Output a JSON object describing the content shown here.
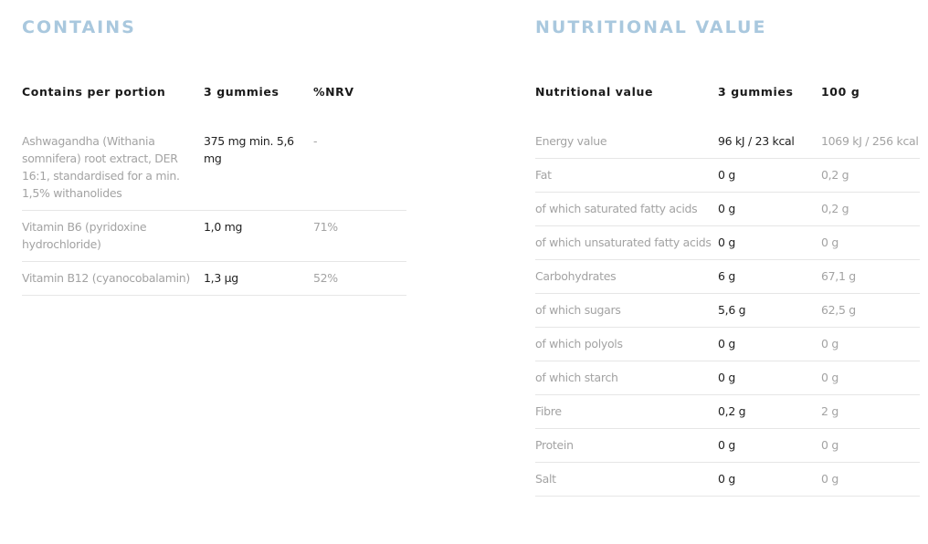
{
  "contains": {
    "title": "CONTAINS",
    "headers": [
      "Contains per portion",
      "3 gummies",
      "%NRV"
    ],
    "rows": [
      [
        "Ashwagandha (Withania somnifera) root extract, DER 16:1, standardised for a min. 1,5% withanolides",
        "375 mg min. 5,6 mg",
        "-"
      ],
      [
        "Vitamin B6 (pyridoxine hydrochloride)",
        "1,0 mg",
        "71%"
      ],
      [
        "Vitamin B12 (cyanocobalamin)",
        "1,3 µg",
        "52%"
      ]
    ]
  },
  "nutrition": {
    "title": "NUTRITIONAL VALUE",
    "headers": [
      "Nutritional value",
      "3 gummies",
      "100 g"
    ],
    "rows": [
      [
        "Energy value",
        "96 kJ / 23 kcal",
        "1069 kJ / 256 kcal"
      ],
      [
        "Fat",
        "0 g",
        "0,2 g"
      ],
      [
        "of which saturated fatty acids",
        "0 g",
        "0,2 g"
      ],
      [
        "of which unsaturated fatty acids",
        "0 g",
        "0 g"
      ],
      [
        "Carbohydrates",
        "6 g",
        "67,1 g"
      ],
      [
        "of which sugars",
        "5,6 g",
        "62,5 g"
      ],
      [
        "of which polyols",
        "0 g",
        "0 g"
      ],
      [
        "of which starch",
        "0 g",
        "0 g"
      ],
      [
        "Fibre",
        "0,2 g",
        "2 g"
      ],
      [
        "Protein",
        "0 g",
        "0 g"
      ],
      [
        "Salt",
        "0 g",
        "0 g"
      ]
    ]
  },
  "colors": {
    "heading": "#a9c8de",
    "label": "#a3a3a3",
    "value": "#222222"
  }
}
